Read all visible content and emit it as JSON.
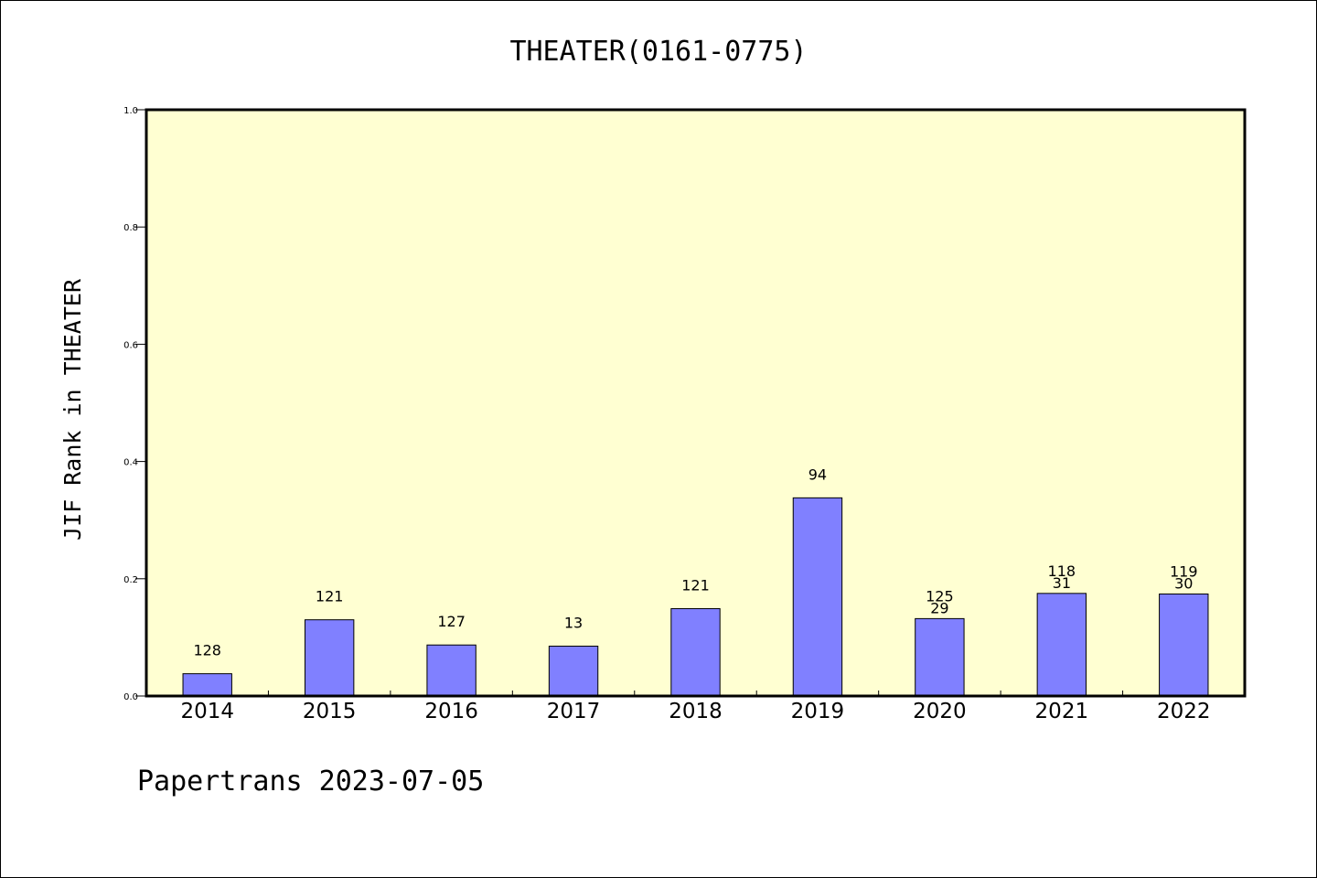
{
  "chart_data": {
    "type": "bar",
    "title": "THEATER(0161-0775)",
    "xlabel": "",
    "ylabel": "JIF Rank in THEATER",
    "ylim": [
      0.0,
      1.0
    ],
    "yticks": [
      "0.0",
      "0.2",
      "0.4",
      "0.6",
      "0.8",
      "1.0"
    ],
    "categories": [
      "2014",
      "2015",
      "2016",
      "2017",
      "2018",
      "2019",
      "2020",
      "2021",
      "2022"
    ],
    "values": [
      0.038,
      0.13,
      0.087,
      0.085,
      0.149,
      0.338,
      0.132,
      0.175,
      0.174
    ],
    "total_labels": [
      "128",
      "121",
      "127",
      "13",
      "121",
      "94",
      "125",
      "118",
      "119"
    ],
    "rank_labels": [
      "",
      "",
      "",
      "",
      "",
      "",
      "29",
      "31",
      "30"
    ],
    "grid": false,
    "legend": "none",
    "colors": {
      "plot_background": "#ffffd2",
      "bar_fill": "#8080ff",
      "bar_stroke": "#000000"
    }
  },
  "footer": "Papertrans 2023-07-05"
}
